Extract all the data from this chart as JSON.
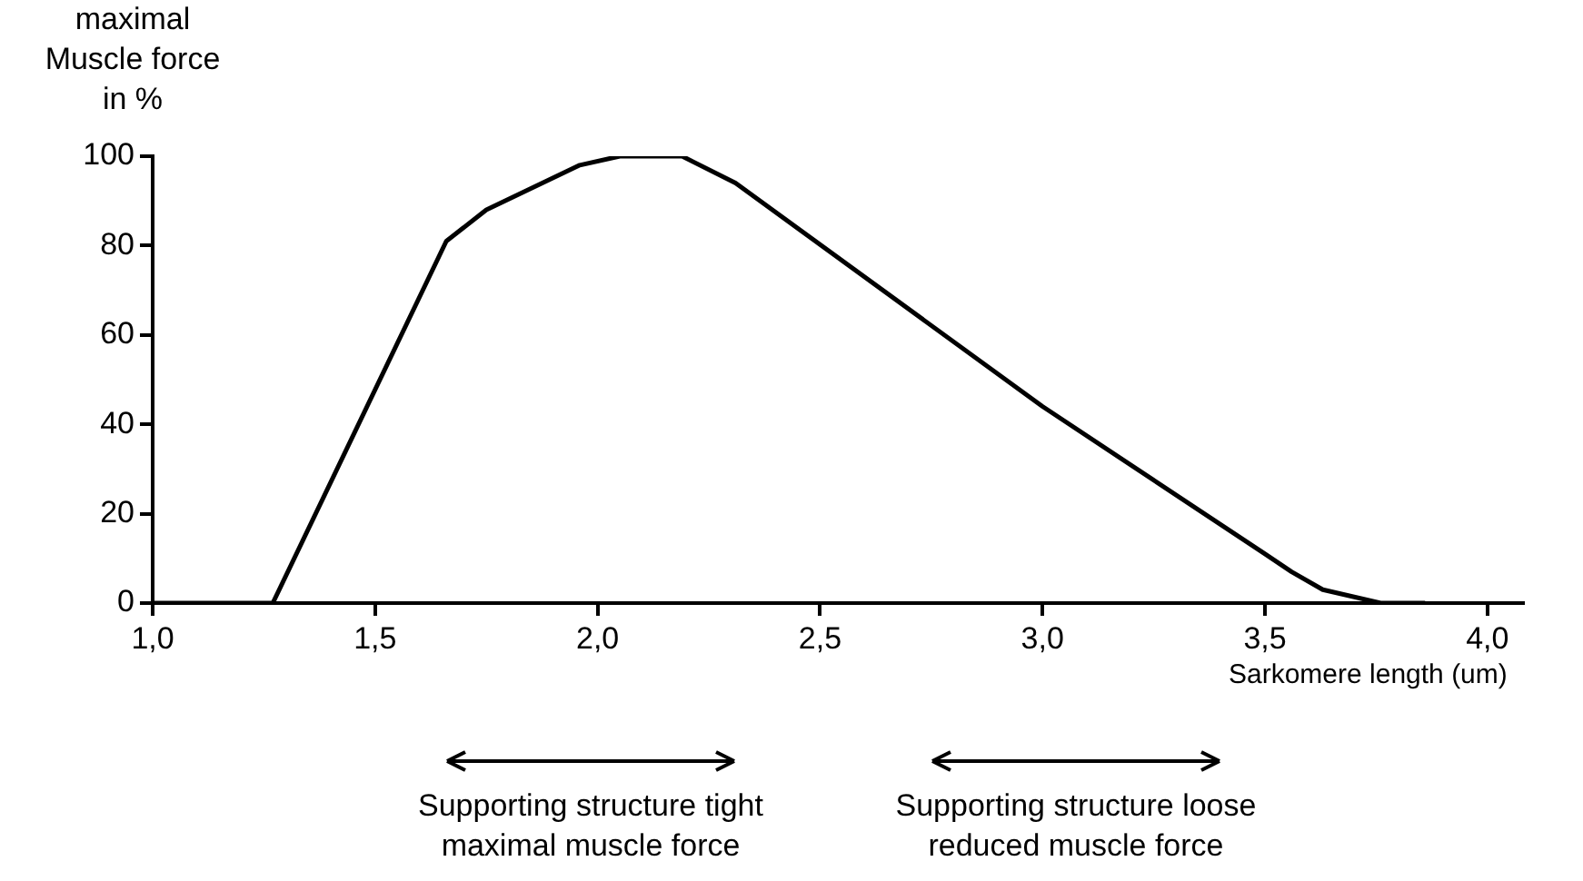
{
  "chart_data": {
    "type": "line",
    "ylabel": "maximal\nMuscle force\nin %",
    "xlabel": "Sarkomere length (um)",
    "x": [
      1.0,
      1.27,
      1.66,
      1.75,
      1.96,
      2.05,
      2.19,
      2.31,
      3.0,
      3.5,
      3.56,
      3.63,
      3.76,
      3.86
    ],
    "series": [
      {
        "color": "#000000",
        "values": [
          0,
          0,
          81,
          88,
          98,
          100,
          100,
          94,
          44,
          11,
          7,
          3,
          0,
          0
        ]
      }
    ],
    "xlim": [
      1.0,
      4.08
    ],
    "xticks": [
      {
        "value": 1,
        "label": "1,0"
      },
      {
        "value": 1.5,
        "label": "1,5"
      },
      {
        "value": 2,
        "label": "2,0"
      },
      {
        "value": 2.5,
        "label": "2,5"
      },
      {
        "value": 3,
        "label": "3,0"
      },
      {
        "value": 3.5,
        "label": "3,5"
      },
      {
        "value": 4,
        "label": "4,0"
      }
    ],
    "ylim": [
      0,
      100
    ],
    "yticks": [
      0,
      20,
      40,
      60,
      80,
      100
    ],
    "grid": false,
    "legend": false,
    "marker": "none",
    "line_style": "solid",
    "annotations": [
      "Supporting structure tight\nmaximal muscle force",
      "Supporting structure loose\nreduced muscle force"
    ]
  }
}
